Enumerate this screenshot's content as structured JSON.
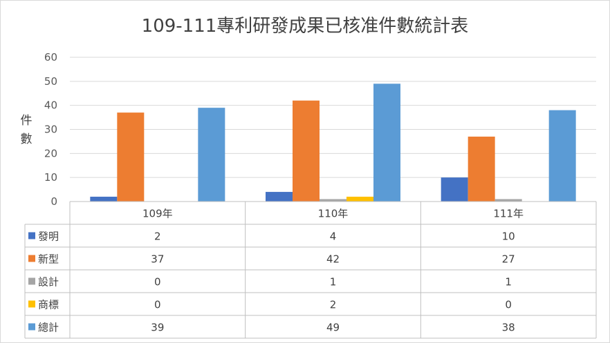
{
  "chart_data": {
    "type": "bar",
    "title": "109-111專利研發成果已核准件數統計表",
    "ylabel": "件數",
    "xlabel": "",
    "ylim": [
      0,
      60
    ],
    "yticks": [
      0,
      10,
      20,
      30,
      40,
      50,
      60
    ],
    "grid": true,
    "legend": "data-table-below",
    "categories": [
      "109年",
      "110年",
      "111年"
    ],
    "series": [
      {
        "name": "發明",
        "color": "#4472c4",
        "values": [
          2,
          4,
          10
        ]
      },
      {
        "name": "新型",
        "color": "#ed7d31",
        "values": [
          37,
          42,
          27
        ]
      },
      {
        "name": "設計",
        "color": "#a5a5a5",
        "values": [
          0,
          1,
          1
        ]
      },
      {
        "name": "商標",
        "color": "#ffc000",
        "values": [
          0,
          2,
          0
        ]
      },
      {
        "name": "總計",
        "color": "#5b9bd5",
        "values": [
          39,
          49,
          38
        ]
      }
    ]
  }
}
